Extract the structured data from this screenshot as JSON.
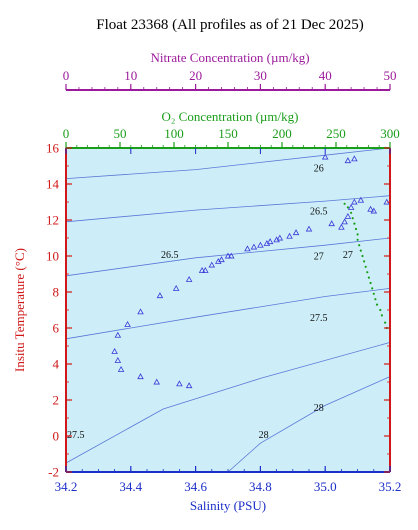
{
  "chart_data": {
    "type": "scatter",
    "title": "Float 23368  (All profiles as of 21 Dec 2025)",
    "xlabel": "Salinity (PSU)",
    "ylabel": "Insitu Temperature (°C)",
    "xlim": [
      34.2,
      35.2
    ],
    "ylim": [
      -2,
      16
    ],
    "xticks": [
      "34.2",
      "34.4",
      "34.6",
      "34.8",
      "35.0",
      "35.2"
    ],
    "yticks": [
      "-2",
      "0",
      "2",
      "4",
      "6",
      "8",
      "10",
      "12",
      "14",
      "16"
    ],
    "top_axes": [
      {
        "label": "O₂ Concentration (µm/kg)",
        "range": [
          0,
          300
        ],
        "ticks": [
          "0",
          "50",
          "100",
          "150",
          "200",
          "250",
          "300"
        ],
        "color": "#1a9e1a"
      },
      {
        "label": "Nitrate Concentration (µm/kg)",
        "range": [
          0,
          50
        ],
        "ticks": [
          "0",
          "10",
          "20",
          "30",
          "40",
          "50"
        ],
        "color": "#9b1a9b"
      }
    ],
    "density_contours": [
      {
        "label": "26",
        "points": [
          [
            34.2,
            14.3
          ],
          [
            34.6,
            14.8
          ],
          [
            35.0,
            15.6
          ],
          [
            35.2,
            16.0
          ]
        ]
      },
      {
        "label": "26.5",
        "points": [
          [
            34.2,
            11.9
          ],
          [
            34.6,
            12.55
          ],
          [
            35.0,
            13.05
          ],
          [
            35.2,
            13.35
          ]
        ]
      },
      {
        "label": "27",
        "points": [
          [
            34.2,
            8.9
          ],
          [
            34.6,
            9.9
          ],
          [
            35.0,
            10.6
          ],
          [
            35.2,
            11.0
          ]
        ]
      },
      {
        "label": "27.5",
        "points": [
          [
            34.2,
            5.4
          ],
          [
            34.6,
            6.6
          ],
          [
            35.0,
            7.75
          ],
          [
            35.2,
            8.2
          ]
        ]
      },
      {
        "label": "28",
        "points": [
          [
            34.2,
            -1.5
          ],
          [
            34.5,
            1.5
          ],
          [
            34.8,
            3.2
          ],
          [
            35.2,
            5.2
          ]
        ]
      },
      {
        "label": "28",
        "points": [
          [
            34.7,
            -2.0
          ],
          [
            34.8,
            -0.4
          ],
          [
            35.0,
            1.7
          ],
          [
            35.2,
            3.3
          ]
        ]
      }
    ],
    "contour_labels": [
      {
        "text": "26",
        "x": 34.98,
        "y": 14.7
      },
      {
        "text": "26.5",
        "x": 34.52,
        "y": 9.9
      },
      {
        "text": "26.5",
        "x": 34.98,
        "y": 12.3
      },
      {
        "text": "27",
        "x": 34.98,
        "y": 9.8
      },
      {
        "text": "27",
        "x": 35.07,
        "y": 9.9
      },
      {
        "text": "27.5",
        "x": 34.98,
        "y": 6.4
      },
      {
        "text": "27.5",
        "x": 34.23,
        "y": -0.1
      },
      {
        "text": "28",
        "x": 34.98,
        "y": 1.4
      },
      {
        "text": "28",
        "x": 34.81,
        "y": -0.1
      }
    ],
    "series": [
      {
        "marker": "triangle",
        "color": "#3838d8",
        "points": [
          [
            34.58,
            2.8
          ],
          [
            34.55,
            2.9
          ],
          [
            34.48,
            3.0
          ],
          [
            34.43,
            3.3
          ],
          [
            34.37,
            3.7
          ],
          [
            34.36,
            4.2
          ],
          [
            34.35,
            4.7
          ],
          [
            34.36,
            5.6
          ],
          [
            34.39,
            6.2
          ],
          [
            34.43,
            6.9
          ],
          [
            34.49,
            7.8
          ],
          [
            34.54,
            8.2
          ],
          [
            34.58,
            8.7
          ],
          [
            34.62,
            9.2
          ],
          [
            34.63,
            9.2
          ],
          [
            34.65,
            9.5
          ],
          [
            34.67,
            9.7
          ],
          [
            34.68,
            9.8
          ],
          [
            34.7,
            10.0
          ],
          [
            34.71,
            10.0
          ],
          [
            34.76,
            10.4
          ],
          [
            34.78,
            10.5
          ],
          [
            34.8,
            10.6
          ],
          [
            34.82,
            10.7
          ],
          [
            34.83,
            10.8
          ],
          [
            34.85,
            10.9
          ],
          [
            34.86,
            11.0
          ],
          [
            34.89,
            11.1
          ],
          [
            34.91,
            11.3
          ],
          [
            34.95,
            11.5
          ],
          [
            35.02,
            11.8
          ],
          [
            35.05,
            11.6
          ],
          [
            35.06,
            11.9
          ],
          [
            35.07,
            12.2
          ],
          [
            35.08,
            12.7
          ],
          [
            35.09,
            13.0
          ],
          [
            35.11,
            13.1
          ],
          [
            35.14,
            12.6
          ],
          [
            35.15,
            12.5
          ],
          [
            35.19,
            13.0
          ],
          [
            35.07,
            15.3
          ],
          [
            35.09,
            15.4
          ],
          [
            35.0,
            15.5
          ]
        ]
      },
      {
        "marker": "dot",
        "color": "#1a9e1a",
        "points": [
          [
            35.06,
            12.9
          ],
          [
            35.07,
            12.7
          ],
          [
            35.08,
            12.4
          ],
          [
            35.085,
            12.1
          ],
          [
            35.09,
            11.8
          ],
          [
            35.095,
            11.5
          ],
          [
            35.1,
            11.2
          ],
          [
            35.1,
            10.9
          ],
          [
            35.105,
            10.6
          ],
          [
            35.11,
            10.3
          ],
          [
            35.115,
            10.0
          ],
          [
            35.12,
            9.7
          ],
          [
            35.125,
            9.4
          ],
          [
            35.13,
            9.1
          ],
          [
            35.135,
            8.8
          ],
          [
            35.14,
            8.5
          ],
          [
            35.145,
            8.2
          ],
          [
            35.15,
            7.9
          ],
          [
            35.155,
            7.6
          ],
          [
            35.16,
            7.3
          ],
          [
            35.17,
            7.0
          ],
          [
            35.175,
            6.7
          ],
          [
            35.185,
            6.3
          ],
          [
            35.19,
            6.0
          ]
        ]
      }
    ]
  }
}
